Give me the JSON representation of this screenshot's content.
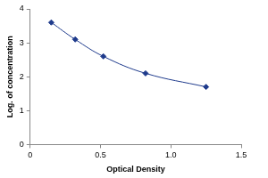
{
  "chart_data": {
    "type": "line",
    "x_label": "Optical Density",
    "y_label": "Log. of concentration",
    "x": [
      0.15,
      0.32,
      0.52,
      0.82,
      1.25
    ],
    "values": [
      3.6,
      3.1,
      2.6,
      2.1,
      1.7
    ],
    "color": "#1f3b8c",
    "marker": "diamond",
    "line_style": "solid",
    "xlim": [
      0,
      1.5
    ],
    "xticks": [
      0,
      0.5,
      1,
      1.5
    ],
    "ylim": [
      0,
      4
    ],
    "yticks": [
      0,
      1,
      2,
      3,
      4
    ],
    "grid": false
  }
}
